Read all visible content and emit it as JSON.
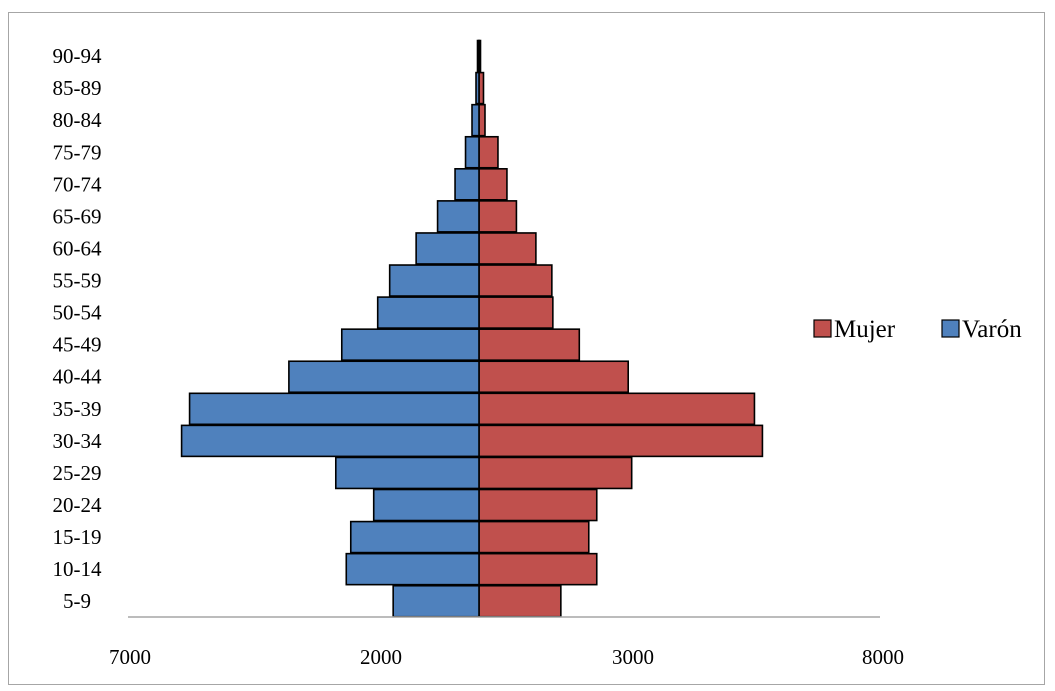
{
  "chart_data": {
    "type": "bar",
    "orientation": "horizontal",
    "layout": "population-pyramid",
    "categories": [
      "5-9",
      "10-14",
      "15-19",
      "20-24",
      "25-29",
      "30-34",
      "35-39",
      "40-44",
      "45-49",
      "50-54",
      "55-59",
      "60-64",
      "65-69",
      "70-74",
      "75-79",
      "80-84",
      "85-89",
      "90-94"
    ],
    "x_tick_labels": [
      "7000",
      "2000",
      "3000",
      "8000"
    ],
    "series": [
      {
        "name": "Mujer",
        "color": "#c0504d",
        "side": "right",
        "values": [
          1640,
          2360,
          2200,
          2360,
          3060,
          5680,
          5520,
          2990,
          2010,
          1480,
          1460,
          1140,
          750,
          560,
          380,
          120,
          90,
          30
        ]
      },
      {
        "name": "Varón",
        "color": "#4f81bd",
        "side": "left",
        "values": [
          1720,
          2660,
          2570,
          2110,
          2870,
          5960,
          5800,
          3810,
          2750,
          2030,
          1790,
          1260,
          830,
          480,
          270,
          140,
          60,
          30
        ]
      }
    ],
    "legend": {
      "position": "right",
      "order": [
        "Mujer",
        "Varón"
      ]
    },
    "grid": false
  }
}
